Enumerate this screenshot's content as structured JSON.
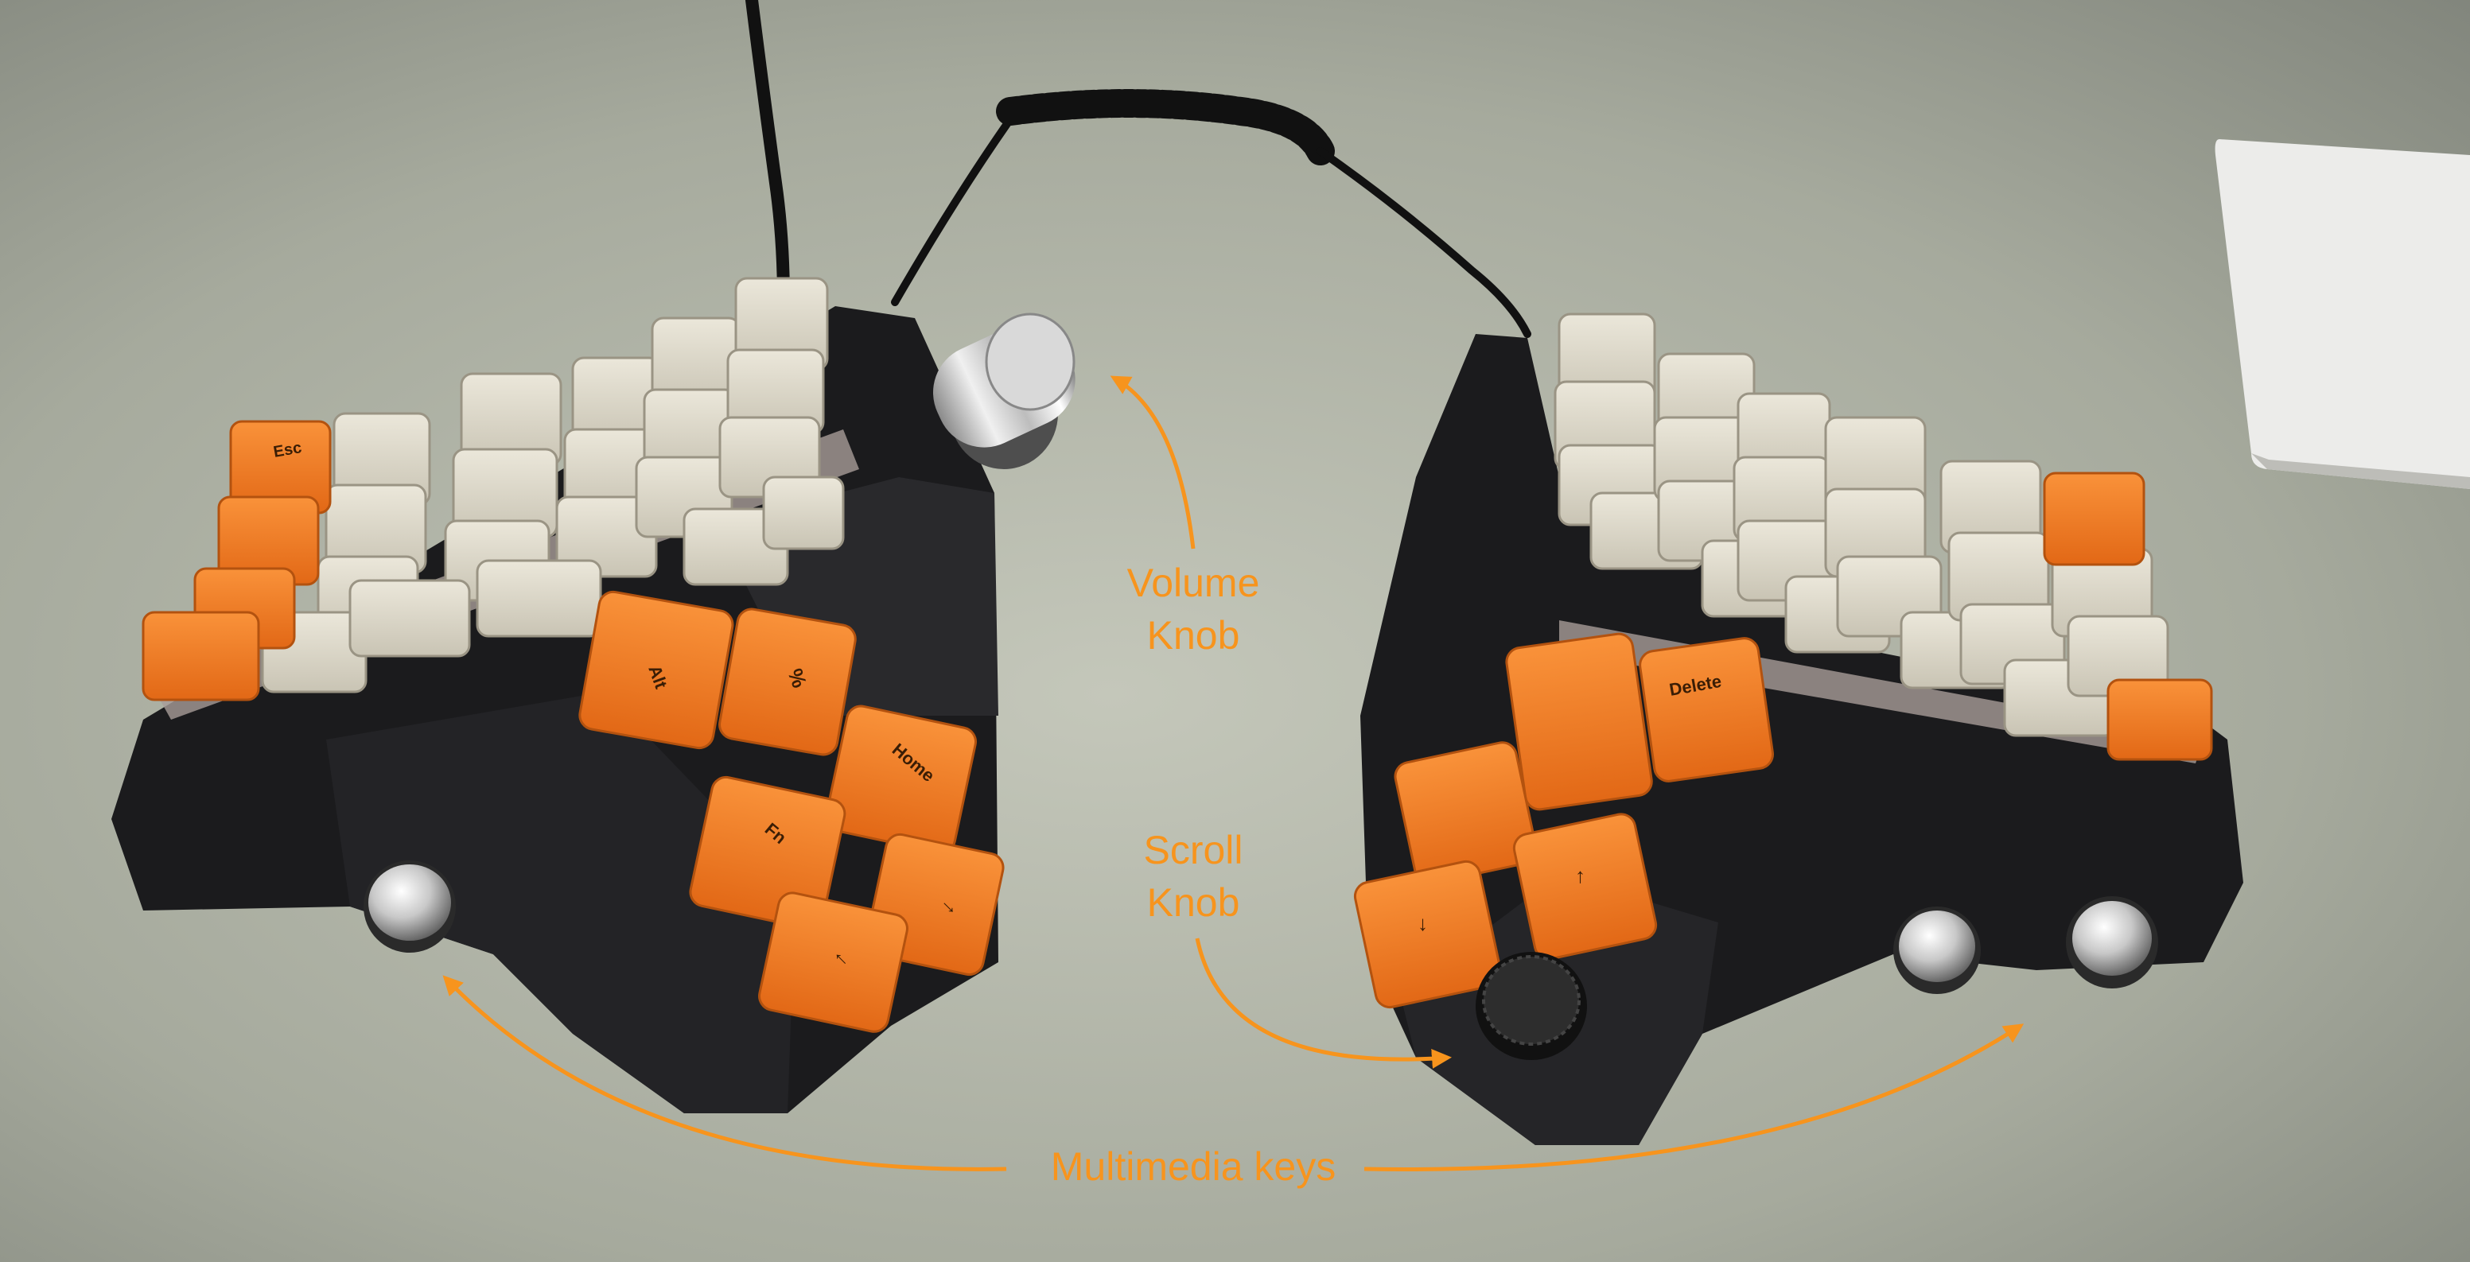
{
  "annotations": {
    "volume_line1": "Volume",
    "volume_line2": "Knob",
    "scroll_line1": "Scroll",
    "scroll_line2": "Knob",
    "multimedia": "Multimedia keys"
  },
  "keycap_legends": {
    "esc": "Esc",
    "alt": "Alt",
    "percent": "%",
    "home": "Home",
    "fn": "Fn",
    "left_arrow": "←",
    "right_arrow": "→",
    "delete": "Delete",
    "up_arrow": "↑",
    "down_arrow": "↓"
  },
  "colors": {
    "annotation": "#f7941d",
    "keycap_orange": "#ef7a22",
    "keycap_beige": "#ddd8c9",
    "case_black": "#1a1a1c",
    "desk": "#a9aca0"
  }
}
